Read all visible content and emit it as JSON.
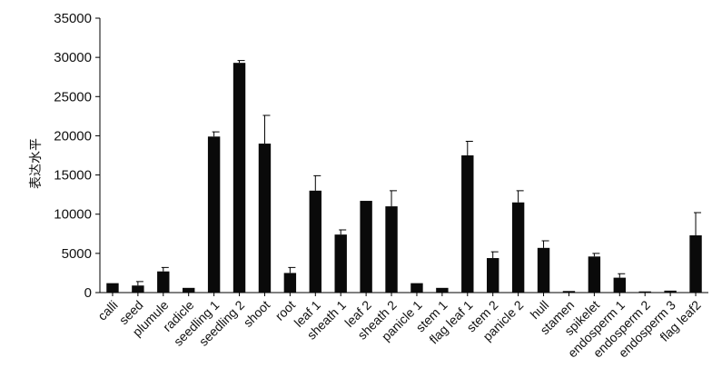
{
  "chart_data": {
    "type": "bar",
    "title": "",
    "xlabel": "",
    "ylabel": "表达水平",
    "ylim": [
      0,
      35000
    ],
    "yticks": [
      0,
      5000,
      10000,
      15000,
      20000,
      25000,
      30000,
      35000
    ],
    "grid": false,
    "legend": "none",
    "bar_color": "#0a0a0a",
    "categories": [
      "calli",
      "seed",
      "plumule",
      "radicle",
      "seedling 1",
      "seedling 2",
      "shoot",
      "root",
      "leaf 1",
      "sheath 1",
      "leaf 2",
      "sheath 2",
      "panicle 1",
      "stem 1",
      "flag leaf 1",
      "stem 2",
      "panicle 2",
      "hull",
      "stamen",
      "spikelet",
      "endosperm 1",
      "endosperm 2",
      "endosperm 3",
      "flag leaf2"
    ],
    "values": [
      1200,
      900,
      2700,
      600,
      19900,
      29300,
      19000,
      2500,
      13000,
      7400,
      11700,
      11000,
      1200,
      600,
      17500,
      4400,
      11500,
      5700,
      200,
      4600,
      1900,
      150,
      250,
      7300
    ],
    "errors": [
      0,
      500,
      500,
      0,
      600,
      300,
      3600,
      700,
      1900,
      600,
      0,
      2000,
      0,
      0,
      1800,
      800,
      1500,
      900,
      0,
      400,
      500,
      0,
      0,
      2900
    ]
  }
}
